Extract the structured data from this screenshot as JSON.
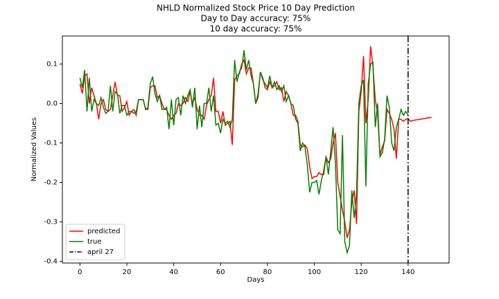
{
  "chart_data": {
    "type": "line",
    "title": "NHLD Normalized Stock Price 10 Day Prediction",
    "subtitles": [
      "Day to Day accuracy: 75%",
      "10 day accuracy: 75%"
    ],
    "x_label": "Days",
    "y_label": "Normalized Values",
    "xlim": [
      -7.5,
      157.5
    ],
    "xticks": [
      0,
      20,
      40,
      60,
      80,
      100,
      120,
      140
    ],
    "ylim": [
      -0.404,
      0.171
    ],
    "yticks": [
      -0.4,
      -0.3,
      -0.2,
      -0.1,
      {
        "value": 0,
        "label": "0.0"
      },
      0.1
    ],
    "grid": false,
    "legend_position": "lower left",
    "series": [
      {
        "name": "predicted",
        "color": "#ff0000",
        "x": [
          0,
          1,
          2,
          3,
          4,
          5,
          6,
          7,
          8,
          9,
          10,
          11,
          12,
          13,
          14,
          15,
          16,
          17,
          18,
          19,
          20,
          21,
          22,
          23,
          24,
          25,
          26,
          27,
          28,
          29,
          30,
          31,
          32,
          33,
          34,
          35,
          36,
          37,
          38,
          39,
          40,
          41,
          42,
          43,
          44,
          45,
          46,
          47,
          48,
          49,
          50,
          51,
          52,
          53,
          54,
          55,
          56,
          57,
          58,
          59,
          60,
          61,
          62,
          63,
          64,
          65,
          66,
          67,
          68,
          69,
          70,
          71,
          72,
          73,
          74,
          75,
          76,
          77,
          78,
          79,
          80,
          81,
          82,
          83,
          84,
          85,
          86,
          87,
          88,
          89,
          90,
          91,
          92,
          93,
          94,
          95,
          96,
          97,
          98,
          99,
          100,
          101,
          102,
          103,
          104,
          105,
          106,
          107,
          108,
          109,
          110,
          111,
          112,
          113,
          114,
          115,
          116,
          117,
          118,
          119,
          120,
          121,
          122,
          123,
          124,
          125,
          126,
          127,
          128,
          129,
          130,
          131,
          132,
          133,
          134,
          135,
          136,
          137,
          138,
          139,
          140,
          141,
          142,
          143,
          144,
          145,
          146,
          147,
          148,
          149,
          150
        ],
        "values": [
          0.05,
          0.025,
          0.07,
          0.075,
          0.0,
          0.04,
          0.02,
          0.0,
          -0.04,
          0.0,
          0.01,
          -0.015,
          -0.02,
          -0.015,
          0.02,
          0.055,
          0.02,
          0.02,
          -0.02,
          -0.01,
          0.005,
          -0.03,
          -0.02,
          -0.015,
          -0.03,
          0.01,
          0.01,
          0.01,
          -0.015,
          -0.015,
          0.04,
          0.045,
          0.045,
          0.015,
          0.02,
          0.0,
          -0.015,
          -0.015,
          -0.03,
          -0.04,
          -0.03,
          -0.025,
          0.0,
          -0.005,
          0.0,
          0.015,
          0.005,
          0.03,
          0.0,
          0.015,
          -0.015,
          -0.03,
          -0.03,
          -0.04,
          -0.005,
          0.01,
          0.02,
          0.065,
          -0.02,
          -0.02,
          -0.05,
          -0.02,
          -0.055,
          -0.05,
          -0.045,
          -0.105,
          0.06,
          0.07,
          0.075,
          0.1,
          0.11,
          0.075,
          0.09,
          0.09,
          0.05,
          0.0,
          0.015,
          0.08,
          0.065,
          0.04,
          0.035,
          0.055,
          0.04,
          0.045,
          0.055,
          0.035,
          0.04,
          0.005,
          0.03,
          0.02,
          0.0,
          -0.03,
          -0.03,
          -0.045,
          -0.105,
          -0.11,
          -0.105,
          -0.115,
          -0.16,
          -0.19,
          -0.185,
          -0.185,
          -0.175,
          -0.18,
          -0.18,
          -0.135,
          -0.15,
          -0.14,
          -0.1,
          -0.075,
          -0.2,
          -0.235,
          -0.27,
          -0.3,
          -0.34,
          -0.32,
          -0.25,
          -0.22,
          -0.305,
          -0.02,
          0.03,
          0.12,
          -0.05,
          0.01,
          0.145,
          0.095,
          0.01,
          -0.025,
          -0.13,
          -0.11,
          -0.095,
          -0.015,
          -0.025,
          -0.04,
          -0.065,
          -0.14,
          -0.04,
          -0.04,
          -0.045,
          -0.04,
          -0.038,
          -0.045,
          -0.043,
          -0.042,
          -0.041,
          -0.04,
          -0.039,
          -0.038,
          -0.037,
          -0.036,
          -0.035
        ]
      },
      {
        "name": "true",
        "color": "#008000",
        "x": [
          0,
          1,
          2,
          3,
          4,
          5,
          6,
          7,
          8,
          9,
          10,
          11,
          12,
          13,
          14,
          15,
          16,
          17,
          18,
          19,
          20,
          21,
          22,
          23,
          24,
          25,
          26,
          27,
          28,
          29,
          30,
          31,
          32,
          33,
          34,
          35,
          36,
          37,
          38,
          39,
          40,
          41,
          42,
          43,
          44,
          45,
          46,
          47,
          48,
          49,
          50,
          51,
          52,
          53,
          54,
          55,
          56,
          57,
          58,
          59,
          60,
          61,
          62,
          63,
          64,
          65,
          66,
          67,
          68,
          69,
          70,
          71,
          72,
          73,
          74,
          75,
          76,
          77,
          78,
          79,
          80,
          81,
          82,
          83,
          84,
          85,
          86,
          87,
          88,
          89,
          90,
          91,
          92,
          93,
          94,
          95,
          96,
          97,
          98,
          99,
          100,
          101,
          102,
          103,
          104,
          105,
          106,
          107,
          108,
          109,
          110,
          111,
          112,
          113,
          114,
          115,
          116,
          117,
          118,
          119,
          120,
          121,
          122,
          123,
          124,
          125,
          126,
          127,
          128,
          129,
          130,
          131,
          132,
          133,
          134,
          135,
          136,
          137,
          138,
          139,
          140
        ],
        "values": [
          0.065,
          0.04,
          0.085,
          -0.02,
          0.065,
          -0.02,
          0.01,
          0.0,
          -0.005,
          0.015,
          -0.01,
          -0.025,
          -0.02,
          0.045,
          -0.02,
          0.03,
          0.025,
          -0.025,
          -0.005,
          -0.005,
          -0.03,
          -0.02,
          -0.02,
          -0.025,
          -0.02,
          0.01,
          0.01,
          0.01,
          -0.015,
          -0.01,
          0.05,
          0.068,
          0.025,
          0.005,
          0.02,
          -0.015,
          -0.015,
          -0.01,
          -0.065,
          0.01,
          -0.055,
          0.01,
          0.015,
          -0.03,
          0.02,
          0.0,
          0.02,
          0.035,
          -0.01,
          0.04,
          -0.065,
          -0.005,
          -0.06,
          0.0,
          0.0,
          0.04,
          -0.02,
          0.02,
          -0.055,
          -0.05,
          -0.075,
          -0.04,
          -0.05,
          -0.045,
          -0.06,
          -0.04,
          0.11,
          0.055,
          0.08,
          0.09,
          0.135,
          0.085,
          0.11,
          0.07,
          0.05,
          0.0,
          0.025,
          0.08,
          0.06,
          0.05,
          0.04,
          0.07,
          0.04,
          0.055,
          0.035,
          0.045,
          0.03,
          0.045,
          0.005,
          0.02,
          0.0,
          -0.005,
          -0.04,
          -0.05,
          -0.12,
          -0.1,
          -0.11,
          -0.155,
          -0.225,
          -0.2,
          -0.2,
          -0.195,
          -0.23,
          -0.195,
          -0.17,
          -0.135,
          -0.18,
          -0.12,
          -0.06,
          -0.15,
          -0.32,
          -0.33,
          -0.08,
          -0.35,
          -0.378,
          -0.36,
          -0.22,
          -0.29,
          -0.23,
          0.0,
          0.045,
          0.06,
          -0.21,
          0.05,
          0.1,
          0.105,
          -0.06,
          0.0,
          -0.135,
          -0.125,
          -0.09,
          0.02,
          -0.01,
          -0.1,
          -0.12,
          -0.06,
          -0.04,
          -0.015,
          -0.03,
          -0.02,
          -0.03
        ]
      }
    ],
    "vlines": [
      {
        "name": "april 27",
        "x": 140,
        "color": "#000000",
        "style": "dashdot"
      }
    ]
  }
}
